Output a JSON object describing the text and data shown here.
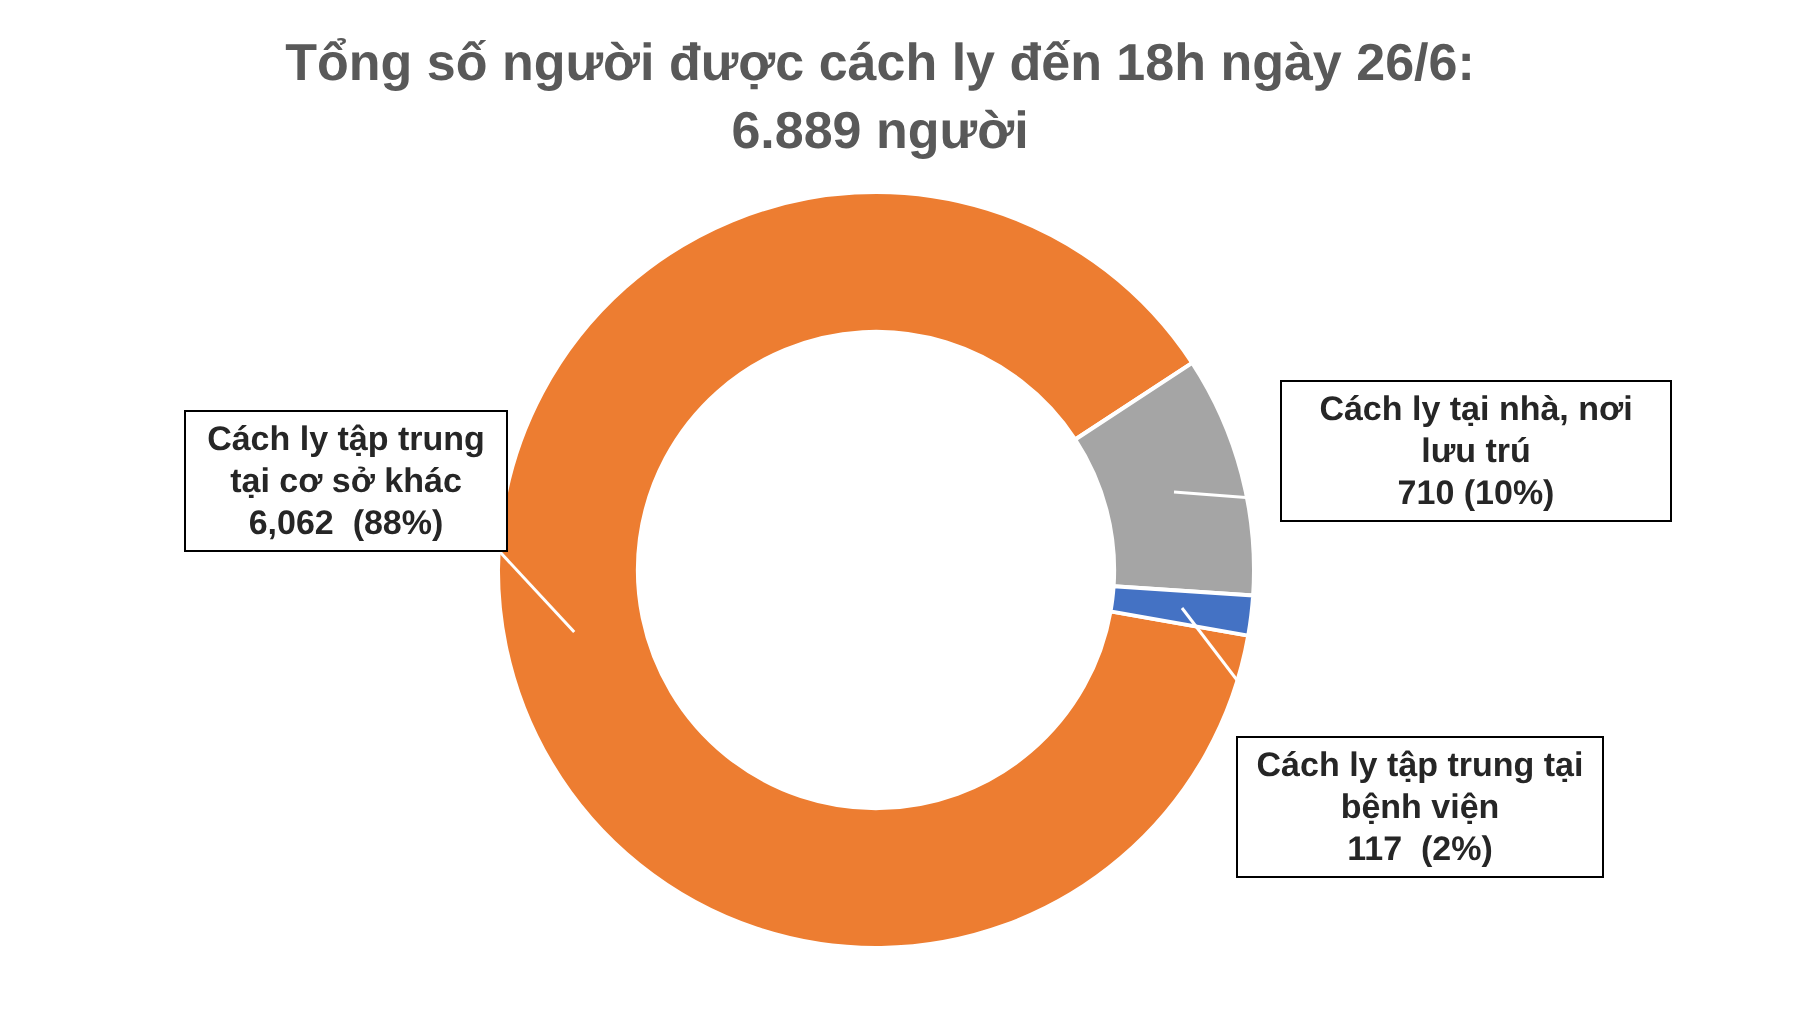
{
  "chart_data": {
    "type": "donut",
    "title": "Tổng số người được cách ly đến 18h ngày 26/6: 6.889 người",
    "categories": [
      "Cách ly tập trung tại cơ sở khác",
      "Cách ly tại nhà, nơi lưu trú",
      "Cách ly tập trung tại bệnh viện"
    ],
    "values": [
      6062,
      710,
      117
    ],
    "colors": [
      "#ed7d31",
      "#a5a5a5",
      "#4472c4"
    ],
    "value_labels": [
      "6,062  (88%)",
      "710 (10%)",
      "117  (2%)"
    ]
  }
}
